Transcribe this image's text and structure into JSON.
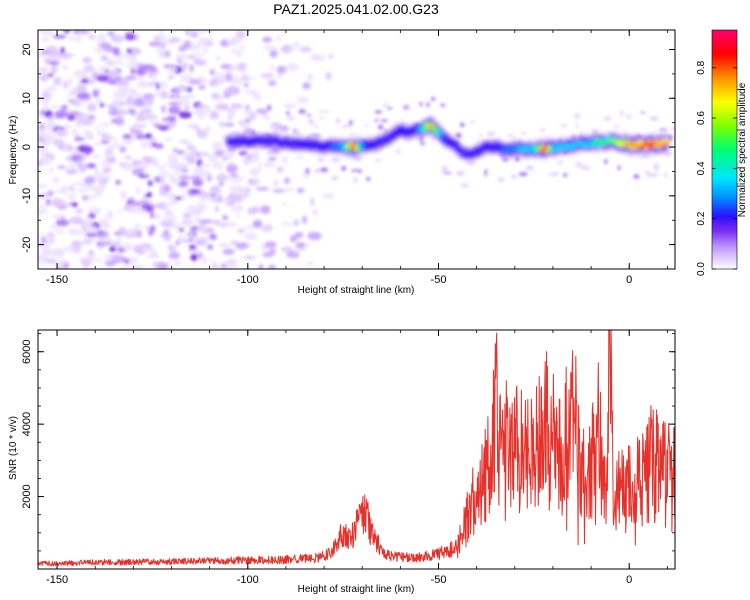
{
  "chart_data": [
    {
      "type": "heatmap",
      "title": "PAZ1.2025.041.02.00.G23",
      "xlabel": "Height of straight line (km)",
      "ylabel": "Frequency (Hz)",
      "xlim": [
        -155,
        12
      ],
      "ylim": [
        -25,
        24
      ],
      "xticks": [
        -150,
        -100,
        -50,
        0
      ],
      "yticks": [
        -20,
        -10,
        0,
        10,
        20
      ],
      "colorbar": {
        "label": "Normalized spectral amplitude",
        "range": [
          0,
          0.95
        ],
        "ticks": [
          "0.0",
          "0.2",
          "0.4",
          "0.6",
          "0.8"
        ],
        "tick_values": [
          0.0,
          0.2,
          0.4,
          0.6,
          0.8
        ]
      },
      "ridge": {
        "x": [
          -105,
          -100,
          -95,
          -90,
          -85,
          -80,
          -75,
          -72,
          -70,
          -67,
          -64,
          -62,
          -60,
          -58,
          -56,
          -54,
          -52,
          -50,
          -48,
          -46,
          -44,
          -42,
          -40,
          -38,
          -35,
          -32,
          -30,
          -27,
          -25,
          -22,
          -20,
          -15,
          -10,
          -5,
          0,
          5,
          10
        ],
        "y": [
          1.0,
          1.2,
          1.4,
          0.9,
          0.6,
          0.2,
          0.1,
          0.0,
          0.2,
          0.5,
          1.5,
          2.5,
          3.5,
          3.0,
          3.5,
          4.0,
          4.5,
          3.0,
          1.5,
          0.5,
          -1.0,
          -1.5,
          -1.0,
          0.0,
          0.0,
          -0.5,
          -0.2,
          -0.5,
          -0.4,
          -0.3,
          -0.2,
          0.3,
          0.9,
          1.2,
          0.5,
          0.4,
          0.8
        ],
        "amplitude": [
          0.25,
          0.3,
          0.25,
          0.25,
          0.3,
          0.3,
          0.45,
          0.9,
          0.4,
          0.3,
          0.25,
          0.3,
          0.35,
          0.3,
          0.3,
          0.5,
          0.8,
          0.5,
          0.3,
          0.3,
          0.25,
          0.2,
          0.3,
          0.3,
          0.3,
          0.4,
          0.4,
          0.5,
          0.5,
          0.9,
          0.5,
          0.5,
          0.5,
          0.6,
          0.8,
          0.85,
          0.8
        ]
      },
      "noise_region_x": [
        -155,
        -78
      ],
      "fill_colors": [
        "#ffffff",
        "#e6d2ff",
        "#b48cff",
        "#7a2cf0",
        "#2d10ff",
        "#0090ff",
        "#00e6ff",
        "#00ff70",
        "#80ff00",
        "#ffff00",
        "#ff9000",
        "#ff0000",
        "#ff0070"
      ]
    },
    {
      "type": "line",
      "xlabel": "Height of straight line (km)",
      "ylabel": "SNR (10 * v/v)",
      "xlim": [
        -155,
        12
      ],
      "ylim": [
        0,
        6600
      ],
      "xticks": [
        -150,
        -100,
        -50,
        0
      ],
      "yticks": [
        2000,
        4000,
        6000
      ],
      "color": "#e8302a",
      "series": [
        {
          "x": [
            -155,
            -140,
            -120,
            -100,
            -90,
            -82,
            -78,
            -75,
            -73,
            -71,
            -69,
            -68,
            -66,
            -64,
            -62,
            -60,
            -55,
            -50,
            -45,
            -42,
            -40,
            -38,
            -36,
            -35,
            -33,
            -30,
            -28,
            -25,
            -22,
            -20,
            -18,
            -15,
            -12,
            -10,
            -8,
            -6,
            -5,
            -4,
            -3,
            -2,
            0,
            2,
            4,
            6,
            8,
            10,
            12
          ],
          "y": [
            150,
            180,
            200,
            240,
            260,
            300,
            450,
            1000,
            800,
            1300,
            1600,
            1100,
            700,
            400,
            350,
            330,
            320,
            420,
            600,
            1500,
            2200,
            2800,
            3000,
            4500,
            3400,
            3700,
            3300,
            3200,
            4000,
            3600,
            3000,
            4600,
            2500,
            2900,
            3900,
            1500,
            6500,
            900,
            2500,
            2200,
            2200,
            2400,
            2500,
            3000,
            2800,
            3100,
            2500
          ]
        }
      ]
    }
  ]
}
